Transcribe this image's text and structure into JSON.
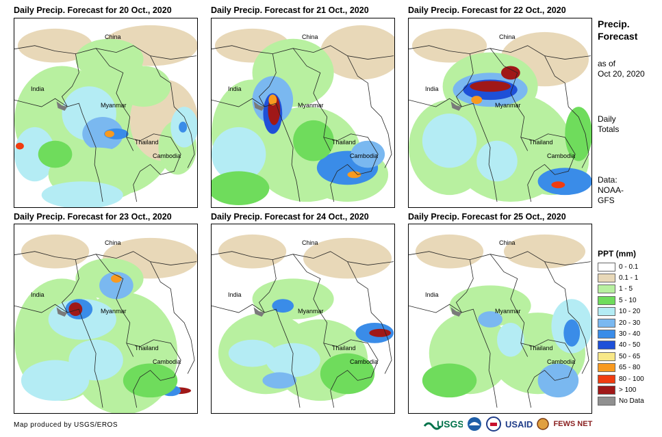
{
  "panels": [
    {
      "title": "Daily Precip. Forecast for 20 Oct., 2020",
      "labels": [
        "China",
        "India",
        "Myanmar",
        "Thailand",
        "Cambodia"
      ]
    },
    {
      "title": "Daily Precip. Forecast for 21 Oct., 2020",
      "labels": [
        "China",
        "India",
        "Myanmar",
        "Thailand",
        "Cambodia"
      ]
    },
    {
      "title": "Daily Precip. Forecast for 22 Oct., 2020",
      "labels": [
        "China",
        "India",
        "Myanmar",
        "Thailand",
        "Cambodia"
      ]
    },
    {
      "title": "Daily Precip. Forecast for 23 Oct., 2020",
      "labels": [
        "China",
        "India",
        "Myanmar",
        "Thailand",
        "Cambodia"
      ]
    },
    {
      "title": "Daily Precip. Forecast for 24 Oct., 2020",
      "labels": [
        "China",
        "India",
        "Myanmar",
        "Thailand",
        "Cambodia"
      ]
    },
    {
      "title": "Daily Precip. Forecast for 25 Oct., 2020",
      "labels": [
        "China",
        "India",
        "Myanmar",
        "Thailand",
        "Cambodia"
      ]
    }
  ],
  "side": {
    "title_line1": "Precip.",
    "title_line2": "Forecast",
    "asof_line1": "as of",
    "asof_line2": "Oct 20, 2020",
    "daily_line1": "Daily",
    "daily_line2": "Totals",
    "data_line1": "Data:",
    "data_line2": "NOAA-",
    "data_line3": "GFS"
  },
  "legend": {
    "title": "PPT (mm)",
    "items": [
      {
        "label": "0 - 0.1",
        "color": "#ffffff"
      },
      {
        "label": "0.1 - 1",
        "color": "#e8d8b8"
      },
      {
        "label": "1 - 5",
        "color": "#b8f0a0"
      },
      {
        "label": "5 - 10",
        "color": "#6fdc5c"
      },
      {
        "label": "10 - 20",
        "color": "#b4ecf4"
      },
      {
        "label": "20 - 30",
        "color": "#7ab8f0"
      },
      {
        "label": "30 - 40",
        "color": "#3a8ce8"
      },
      {
        "label": "40 - 50",
        "color": "#1e50d8"
      },
      {
        "label": "50 - 65",
        "color": "#f8e888"
      },
      {
        "label": "65 - 80",
        "color": "#f89a20"
      },
      {
        "label": "80 - 100",
        "color": "#f03c10"
      },
      {
        "label": "> 100",
        "color": "#a01818"
      },
      {
        "label": "No Data",
        "color": "#909090"
      }
    ]
  },
  "credit": "Map produced by USGS/EROS",
  "logos": {
    "usgs": "USGS",
    "usaid": "USAID",
    "fews": "FEWS NET"
  }
}
